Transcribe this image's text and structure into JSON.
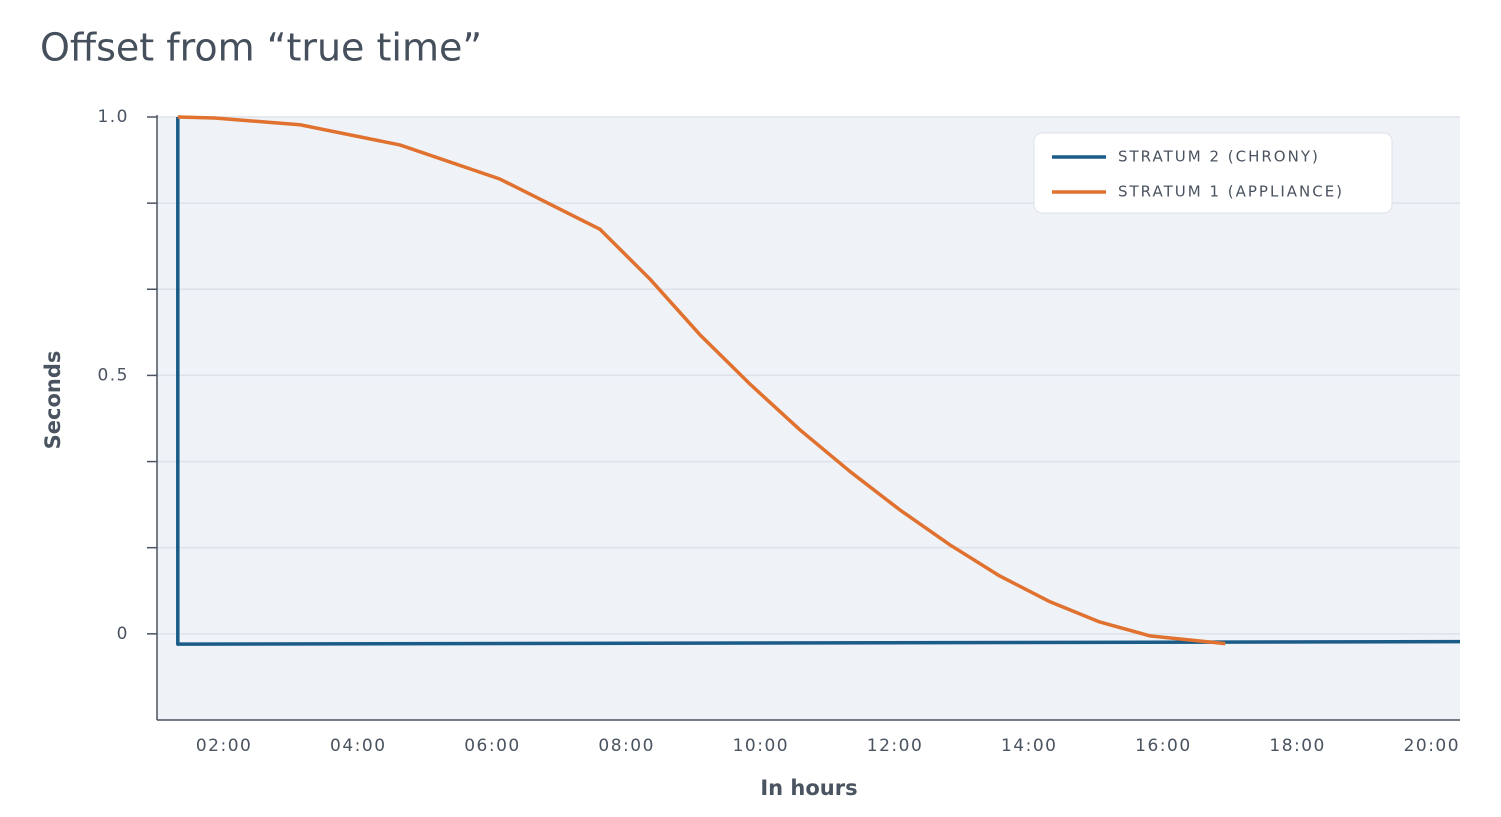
{
  "chart_data": {
    "type": "line",
    "title": "Offset from “true time”",
    "x_label": "In hours",
    "y_label": "Seconds",
    "xlim": [
      1,
      20.42
    ],
    "ylim": [
      -0.1667,
      1
    ],
    "xticks": [
      {
        "value": 2,
        "label": "02:00"
      },
      {
        "value": 4,
        "label": "04:00"
      },
      {
        "value": 6,
        "label": "06:00"
      },
      {
        "value": 8,
        "label": "08:00"
      },
      {
        "value": 10,
        "label": "10:00"
      },
      {
        "value": 12,
        "label": "12:00"
      },
      {
        "value": 14,
        "label": "14:00"
      },
      {
        "value": 16,
        "label": "16:00"
      },
      {
        "value": 18,
        "label": "18:00"
      },
      {
        "value": 20,
        "label": "20:00"
      }
    ],
    "yticks": [
      0,
      0.5,
      {
        "value": 1,
        "label": "1.0"
      }
    ],
    "minor_yticks": [
      0.1667,
      0.3333,
      0.6667,
      0.8333
    ],
    "grid": true,
    "legend": "upper right",
    "series": [
      {
        "name": "STRATUM 2 (CHRONY)",
        "color": "#1b5b87",
        "x": [
          1.31,
          1.31,
          20.42
        ],
        "values": [
          1,
          -0.02,
          -0.015
        ]
      },
      {
        "name": "STRATUM 1 (APPLIANCE)",
        "color": "#e0712f",
        "x": [
          1.31,
          1.86,
          3.13,
          4.62,
          6.11,
          7.6,
          8.35,
          9.09,
          9.84,
          10.58,
          11.33,
          12.07,
          12.82,
          13.56,
          14.31,
          15.05,
          15.8,
          16.92
        ],
        "values": [
          1,
          0.998,
          0.985,
          0.946,
          0.88,
          0.783,
          0.686,
          0.579,
          0.483,
          0.395,
          0.314,
          0.24,
          0.172,
          0.112,
          0.062,
          0.023,
          -0.004,
          -0.019
        ]
      }
    ]
  }
}
